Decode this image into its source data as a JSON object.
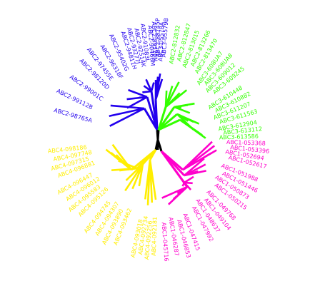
{
  "clades": [
    {
      "name": "blue-clade",
      "color": "#2200ee",
      "labels": [
        "ABC2-98765A",
        "ABC2-99112B",
        "ABC2-99001C",
        "ABC2-98120D",
        "ABC2-97455E",
        "ABC2-96318F",
        "ABC2-95402G",
        "ABC2-94811H",
        "ABC2-93277J",
        "ABC2-92514K",
        "ABC2-91083L",
        "ABC2-90466M",
        "ABC2-89320N",
        "ABC2-88745P",
        "ABC3-05578A",
        "ABC3-05579B"
      ]
    },
    {
      "name": "green-clade",
      "color": "#33ff00",
      "labels": [
        "ABC2-812832",
        "ABC2-812847",
        "ABC2-813015",
        "ABC2-813266",
        "ABC2-813470",
        "ABC3-608UA7",
        "ABC3-608UA8",
        "ABC3-609012",
        "ABC3-609245",
        "ABC3-610448",
        "ABC3-610882",
        "ABC3-611207",
        "ABC3-611563",
        "ABC3-612904",
        "ABC3-613112",
        "ABC3-613586"
      ]
    },
    {
      "name": "magenta-clade",
      "color": "#ff00cc",
      "labels": [
        "ABC1-053368",
        "ABC1-053396",
        "ABC1-052694",
        "ABC1-052617",
        "ABC1-051988",
        "ABC1-051446",
        "ABC1-050873",
        "ABC1-050215",
        "ABC1-049768",
        "ABC1-049104",
        "ABC1-048637",
        "ABC1-047992",
        "ABC1-047415",
        "ABC1-046853",
        "ABC1-046287",
        "ABC1-045716"
      ]
    },
    {
      "name": "yellow-clade",
      "color": "#ffee00",
      "labels": [
        "ABC4-092181",
        "ABC4-092256",
        "ABC4-092734",
        "ABC4-093018",
        "ABC4-093462",
        "ABC4-093890",
        "ABC4-094307",
        "ABC4-094745",
        "ABC4-095126",
        "ABC4-095583",
        "ABC4-096012",
        "ABC4-096447",
        "ABC4-096881",
        "ABC4-097315",
        "ABC4-097748",
        "ABC4-098186"
      ]
    }
  ]
}
